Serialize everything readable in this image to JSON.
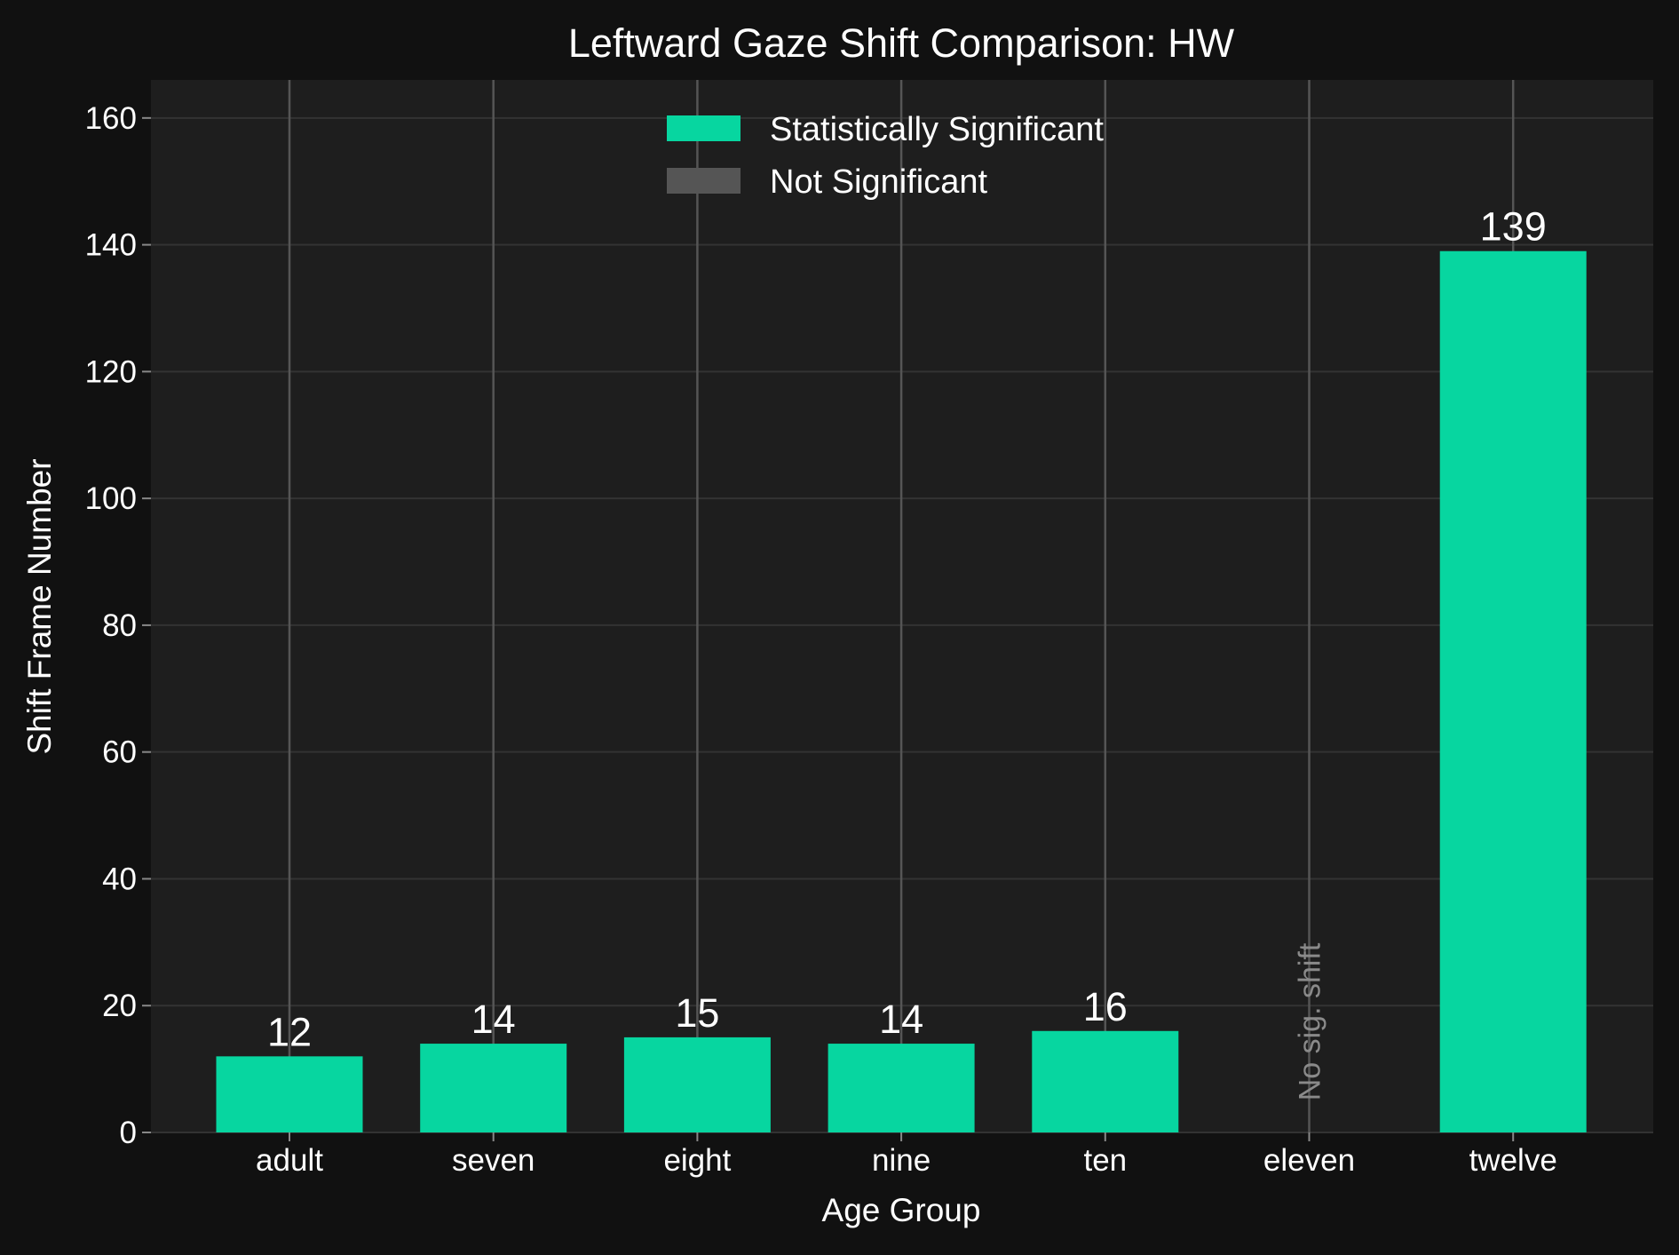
{
  "chart_data": {
    "type": "bar",
    "title": "Leftward Gaze Shift Comparison: HW",
    "xlabel": "Age Group",
    "ylabel": "Shift Frame Number",
    "categories": [
      "adult",
      "seven",
      "eight",
      "nine",
      "ten",
      "eleven",
      "twelve"
    ],
    "values": [
      12,
      14,
      15,
      14,
      16,
      null,
      139
    ],
    "data_labels": [
      "12",
      "14",
      "15",
      "14",
      "16",
      "",
      "139"
    ],
    "significant": [
      true,
      true,
      true,
      true,
      true,
      false,
      true
    ],
    "annotations": [
      {
        "category": "eleven",
        "text": "No sig. shift"
      }
    ],
    "ylim": [
      0,
      166
    ],
    "yticks": [
      0,
      20,
      40,
      60,
      80,
      100,
      120,
      140,
      160
    ],
    "grid": true,
    "legend": {
      "placement": "top-center",
      "entries": [
        {
          "label": "Statistically Significant",
          "color": "#07d6a0"
        },
        {
          "label": "Not Significant",
          "color": "#555555"
        }
      ]
    },
    "colors": {
      "significant": "#07d6a0",
      "not_significant": "#555555",
      "background": "#111111",
      "plot_background": "#1e1e1e"
    }
  }
}
